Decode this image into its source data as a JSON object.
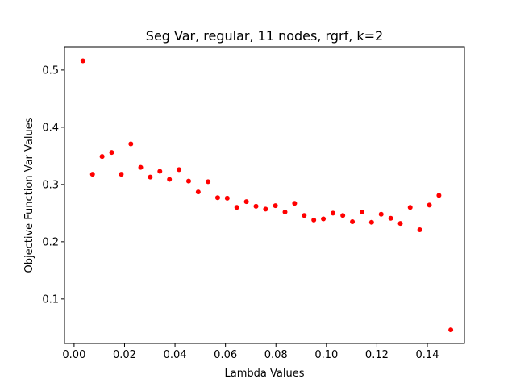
{
  "chart_data": {
    "type": "scatter",
    "title": "Seg Var, regular, 11 nodes, rgrf, k=2",
    "xlabel": "Lambda Values",
    "ylabel": "Objective Function Var Values",
    "xlim": [
      -0.0038,
      0.1547
    ],
    "ylim": [
      0.0223,
      0.5407
    ],
    "xticks": [
      0.0,
      0.02,
      0.04,
      0.06,
      0.08,
      0.1,
      0.12,
      0.14
    ],
    "xtick_labels": [
      "0.00",
      "0.02",
      "0.04",
      "0.06",
      "0.08",
      "0.10",
      "0.12",
      "0.14"
    ],
    "yticks": [
      0.1,
      0.2,
      0.3,
      0.4,
      0.5
    ],
    "ytick_labels": [
      "0.1",
      "0.2",
      "0.3",
      "0.4",
      "0.5"
    ],
    "marker_color": "#ff0000",
    "grid": false,
    "series": [
      {
        "points": [
          {
            "x": 0.0035,
            "y": 0.516
          },
          {
            "x": 0.0073,
            "y": 0.318
          },
          {
            "x": 0.0111,
            "y": 0.349
          },
          {
            "x": 0.0149,
            "y": 0.356
          },
          {
            "x": 0.0187,
            "y": 0.318
          },
          {
            "x": 0.0225,
            "y": 0.371
          },
          {
            "x": 0.0264,
            "y": 0.33
          },
          {
            "x": 0.0302,
            "y": 0.313
          },
          {
            "x": 0.034,
            "y": 0.323
          },
          {
            "x": 0.0378,
            "y": 0.309
          },
          {
            "x": 0.0416,
            "y": 0.326
          },
          {
            "x": 0.0454,
            "y": 0.306
          },
          {
            "x": 0.0492,
            "y": 0.287
          },
          {
            "x": 0.0531,
            "y": 0.305
          },
          {
            "x": 0.0569,
            "y": 0.277
          },
          {
            "x": 0.0607,
            "y": 0.276
          },
          {
            "x": 0.0645,
            "y": 0.26
          },
          {
            "x": 0.0683,
            "y": 0.27
          },
          {
            "x": 0.0721,
            "y": 0.262
          },
          {
            "x": 0.0759,
            "y": 0.257
          },
          {
            "x": 0.0798,
            "y": 0.263
          },
          {
            "x": 0.0836,
            "y": 0.252
          },
          {
            "x": 0.0874,
            "y": 0.267
          },
          {
            "x": 0.0912,
            "y": 0.246
          },
          {
            "x": 0.095,
            "y": 0.238
          },
          {
            "x": 0.0988,
            "y": 0.24
          },
          {
            "x": 0.1026,
            "y": 0.25
          },
          {
            "x": 0.1065,
            "y": 0.246
          },
          {
            "x": 0.1103,
            "y": 0.235
          },
          {
            "x": 0.1141,
            "y": 0.252
          },
          {
            "x": 0.1179,
            "y": 0.234
          },
          {
            "x": 0.1217,
            "y": 0.248
          },
          {
            "x": 0.1255,
            "y": 0.241
          },
          {
            "x": 0.1293,
            "y": 0.232
          },
          {
            "x": 0.1332,
            "y": 0.26
          },
          {
            "x": 0.137,
            "y": 0.221
          },
          {
            "x": 0.1408,
            "y": 0.264
          },
          {
            "x": 0.1446,
            "y": 0.281
          },
          {
            "x": 0.1493,
            "y": 0.046
          }
        ]
      }
    ]
  }
}
